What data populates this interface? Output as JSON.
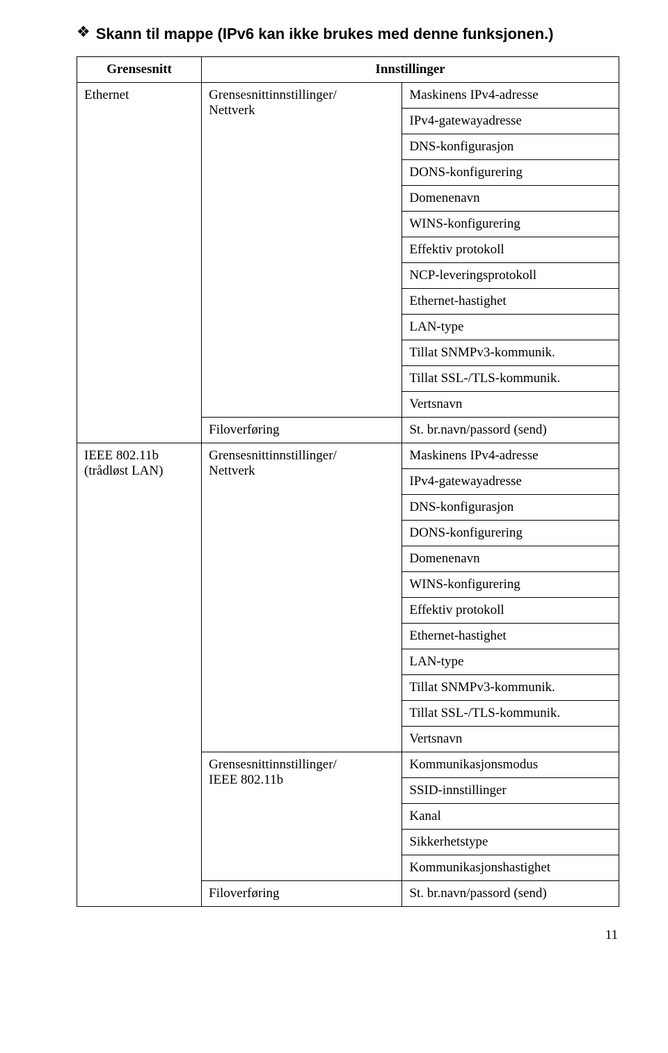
{
  "heading": "Skann til mappe (IPv6 kan ikke brukes med denne funksjonen.)",
  "columns": {
    "iface": "Grensesnitt",
    "settings": "Innstillinger"
  },
  "ethernet": {
    "label": "Ethernet",
    "group1": "Grensesnittinnstillinger/\nNettverk",
    "items1": [
      "Maskinens IPv4-adresse",
      "IPv4-gatewayadresse",
      "DNS-konfigurasjon",
      "DONS-konfigurering",
      "Domenenavn",
      "WINS-konfigurering",
      "Effektiv protokoll",
      "NCP-leveringsprotokoll",
      "Ethernet-hastighet",
      "LAN-type",
      "Tillat SNMPv3-kommunik.",
      "Tillat SSL-/TLS-kommunik.",
      "Vertsnavn"
    ],
    "group2": "Filoverføring",
    "item2": "St. br.navn/passord (send)"
  },
  "wlan": {
    "label": "IEEE 802.11b\n(trådløst LAN)",
    "group1": "Grensesnittinnstillinger/\nNettverk",
    "items1": [
      "Maskinens IPv4-adresse",
      "IPv4-gatewayadresse",
      "DNS-konfigurasjon",
      "DONS-konfigurering",
      "Domenenavn",
      "WINS-konfigurering",
      "Effektiv protokoll",
      "Ethernet-hastighet",
      "LAN-type",
      "Tillat SNMPv3-kommunik.",
      "Tillat SSL-/TLS-kommunik.",
      "Vertsnavn"
    ],
    "group2": "Grensesnittinnstillinger/\nIEEE 802.11b",
    "items2": [
      "Kommunikasjonsmodus",
      "SSID-innstillinger",
      "Kanal",
      "Sikkerhetstype",
      "Kommunikasjonshastighet"
    ],
    "group3": "Filoverføring",
    "item3": "St. br.navn/passord (send)"
  },
  "pageNumber": "11"
}
